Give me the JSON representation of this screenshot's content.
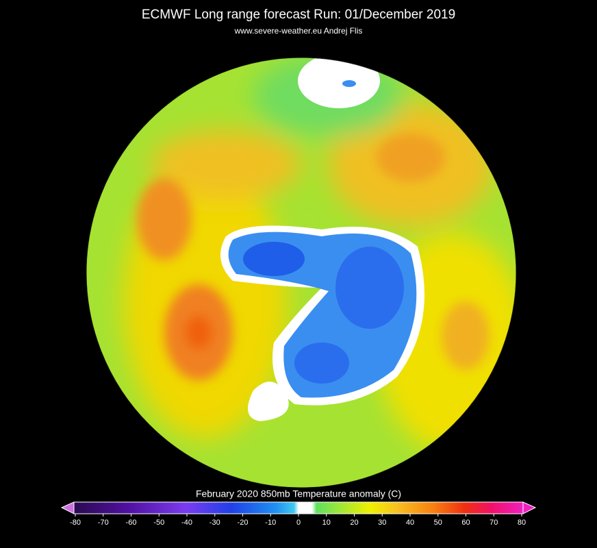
{
  "header": {
    "title": "ECMWF Long range forecast  Run: 01/December 2019",
    "subtitle": "www.severe-weather.eu   Andrej Flis"
  },
  "legend": {
    "label": "February 2020    850mb Temperature anomaly (C)",
    "range": [
      -80,
      80
    ],
    "ticks": [
      -80,
      -70,
      -60,
      -50,
      -40,
      -30,
      -20,
      -10,
      0,
      10,
      20,
      30,
      40,
      50,
      60,
      70,
      80
    ]
  }
}
